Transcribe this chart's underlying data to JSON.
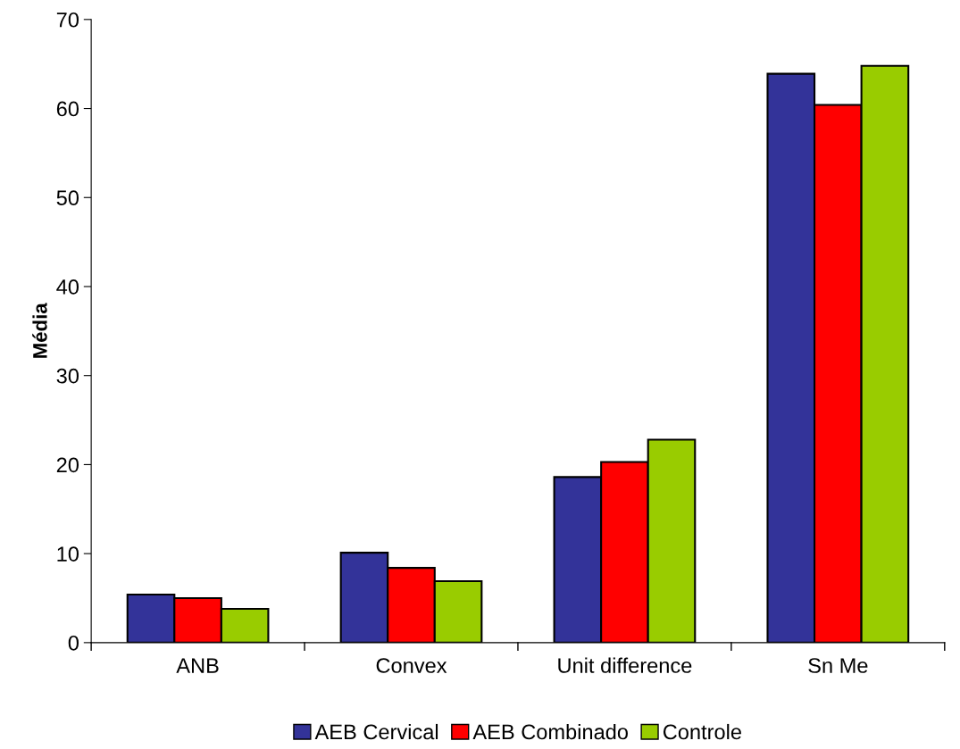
{
  "chart_data": {
    "type": "bar",
    "ylabel": "Média",
    "categories": [
      "ANB",
      "Convex",
      "Unit difference",
      "Sn Me"
    ],
    "series": [
      {
        "name": "AEB Cervical",
        "color": "#333399",
        "values": [
          5.4,
          10.1,
          18.6,
          63.9
        ]
      },
      {
        "name": "AEB Combinado",
        "color": "#ff0000",
        "values": [
          5.0,
          8.4,
          20.3,
          60.4
        ]
      },
      {
        "name": "Controle",
        "color": "#99cc00",
        "values": [
          3.8,
          6.9,
          22.8,
          64.8
        ]
      }
    ],
    "ylim": [
      0,
      70
    ],
    "yticks": [
      0,
      10,
      20,
      30,
      40,
      50,
      60,
      70
    ],
    "grid": false,
    "legend": "bottom"
  }
}
